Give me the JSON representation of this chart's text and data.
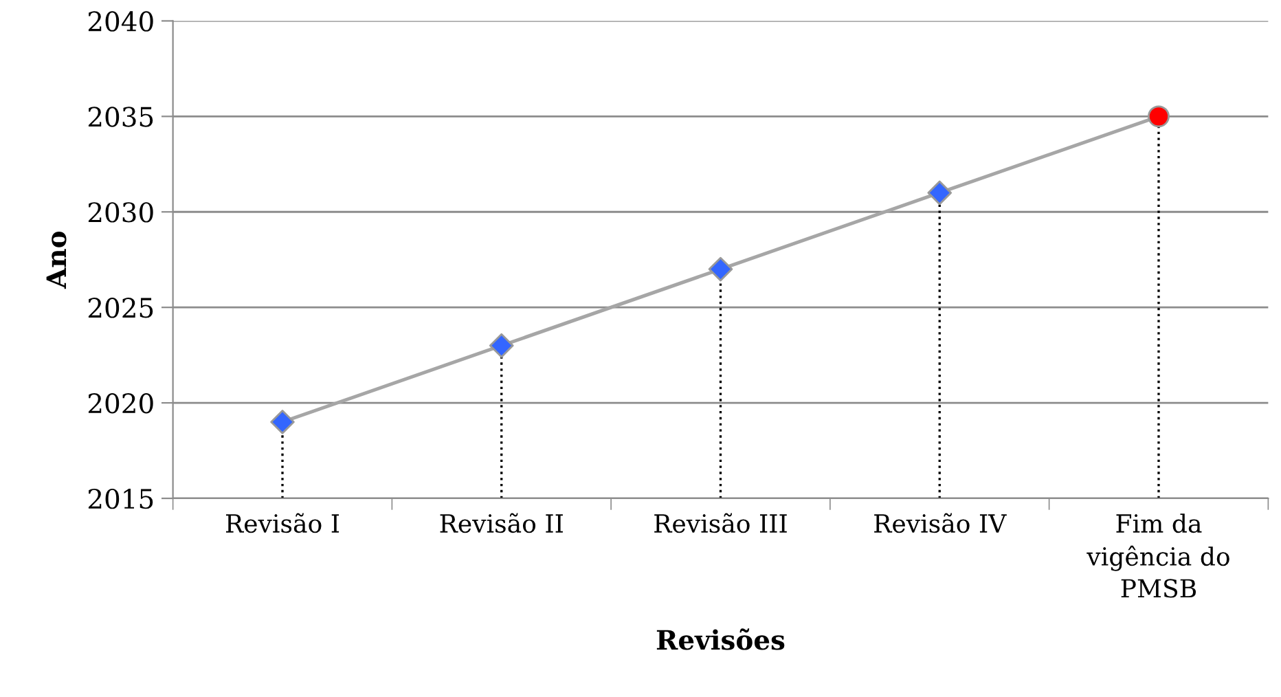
{
  "chart_data": {
    "type": "line",
    "xlabel": "Revisões",
    "ylabel": "Ano",
    "categories": [
      "Revisão I",
      "Revisão II",
      "Revisão III",
      "Revisão IV",
      "Fim da\nvigência do\nPMSB"
    ],
    "series": [
      {
        "type": "line",
        "color": "#a6a6a6",
        "marker": "none",
        "values": [
          2019,
          2023,
          2027,
          2031,
          2035
        ]
      },
      {
        "type": "scatter",
        "color": "#3366ff",
        "marker": "diamond",
        "values": [
          2019,
          2023,
          2027,
          2031,
          null
        ],
        "errors": [
          [
            2015,
            2019
          ],
          [
            2015,
            2023
          ],
          [
            2015,
            2027
          ],
          [
            2015,
            2031
          ],
          null
        ]
      },
      {
        "type": "scatter",
        "color": "#ff0000",
        "marker": "circle",
        "values": [
          null,
          null,
          null,
          null,
          2035
        ],
        "errors": [
          null,
          null,
          null,
          null,
          [
            2015,
            2035
          ]
        ]
      }
    ],
    "ylim": [
      2015,
      2040
    ],
    "yticks": [
      2015,
      2020,
      2025,
      2030,
      2035,
      2040
    ],
    "grid": "y"
  }
}
